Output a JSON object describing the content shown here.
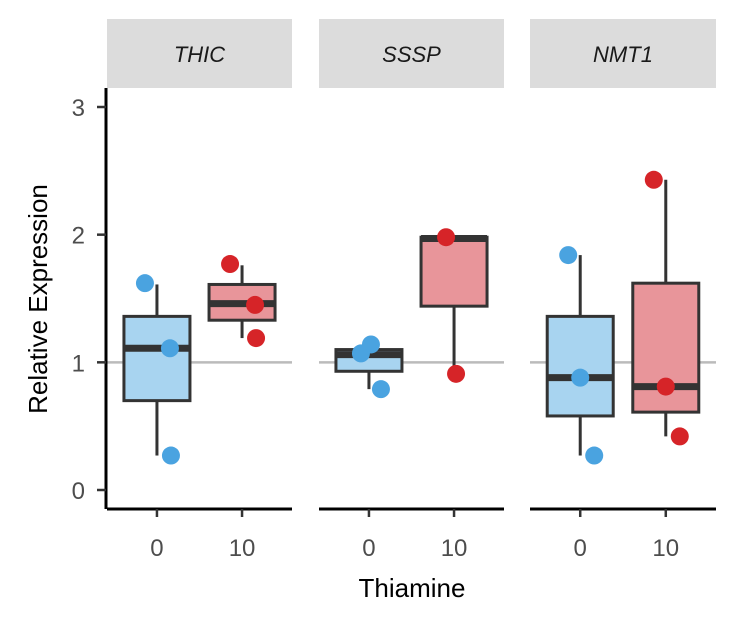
{
  "chart_data": {
    "type": "boxplot",
    "xlabel": "Thiamine",
    "ylabel": "Relative Expression",
    "ylim": [
      -0.15,
      3.1
    ],
    "yticks": [
      0,
      1,
      2,
      3
    ],
    "reference_line": 1,
    "categories": [
      "0",
      "10"
    ],
    "colors": {
      "0": {
        "box": "#a8d4f0",
        "point": "#4aa3e0"
      },
      "10": {
        "box": "#e8959a",
        "point": "#d62428"
      },
      "reference": "#bbbbbb",
      "strip": "#dcdcdc"
    },
    "panels": [
      {
        "label": "THIC",
        "groups": [
          {
            "x": "0",
            "q1": 0.7,
            "median": 1.11,
            "q3": 1.36,
            "whisker_low": 0.27,
            "whisker_high": 1.61,
            "points": [
              1.62,
              1.11,
              0.27
            ]
          },
          {
            "x": "10",
            "q1": 1.33,
            "median": 1.46,
            "q3": 1.61,
            "whisker_low": 1.19,
            "whisker_high": 1.76,
            "points": [
              1.77,
              1.45,
              1.19
            ]
          }
        ]
      },
      {
        "label": "SSSP",
        "groups": [
          {
            "x": "0",
            "q1": 0.93,
            "median": 1.06,
            "q3": 1.1,
            "whisker_low": 0.79,
            "whisker_high": 1.14,
            "points": [
              1.07,
              1.14,
              0.79
            ]
          },
          {
            "x": "10",
            "q1": 1.44,
            "median": 1.97,
            "q3": 1.98,
            "whisker_low": 0.91,
            "whisker_high": 1.98,
            "points": [
              1.98,
              0.91
            ]
          }
        ]
      },
      {
        "label": "NMT1",
        "groups": [
          {
            "x": "0",
            "q1": 0.58,
            "median": 0.88,
            "q3": 1.36,
            "whisker_low": 0.27,
            "whisker_high": 1.84,
            "points": [
              1.84,
              0.88,
              0.27
            ]
          },
          {
            "x": "10",
            "q1": 0.61,
            "median": 0.81,
            "q3": 1.62,
            "whisker_low": 0.42,
            "whisker_high": 2.43,
            "points": [
              2.43,
              0.81,
              0.42
            ]
          }
        ]
      }
    ]
  }
}
